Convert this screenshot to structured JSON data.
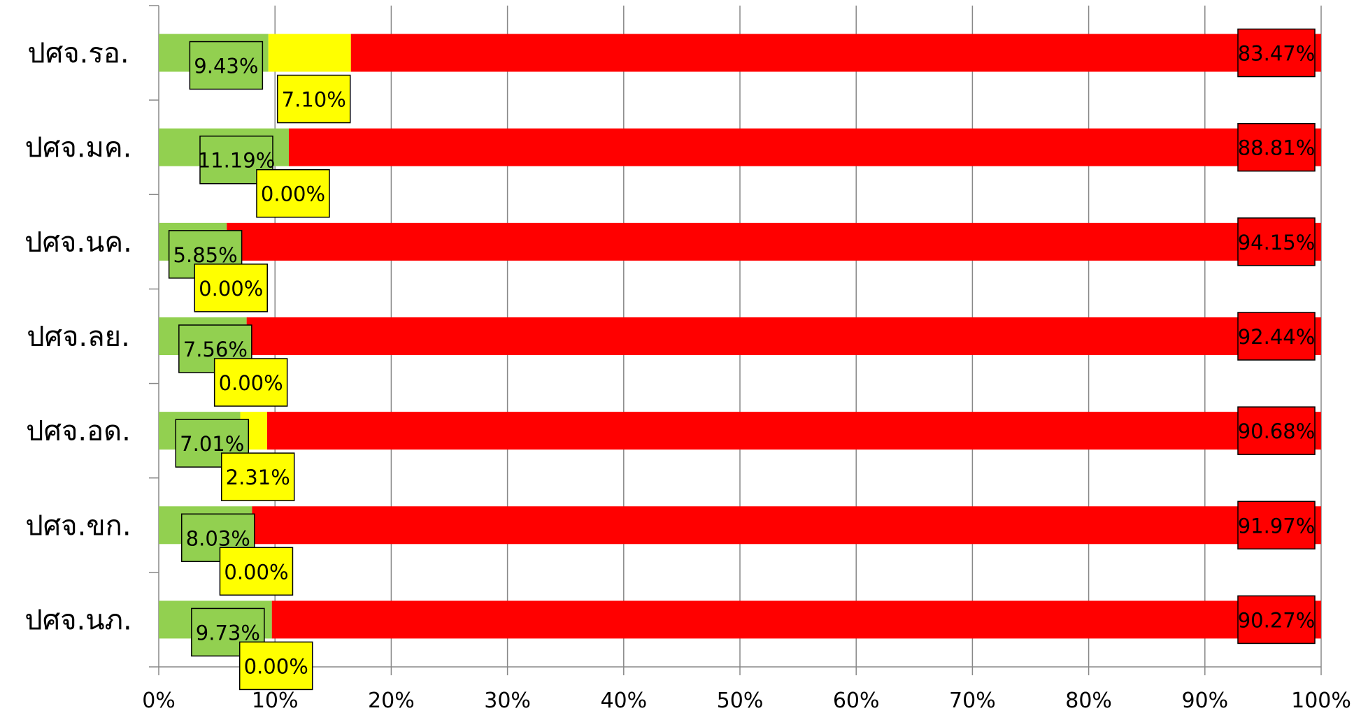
{
  "chart_data": {
    "type": "bar",
    "orientation": "horizontal",
    "stacked": true,
    "percent_stacked": true,
    "categories": [
      "ปศจ.รอ.",
      "ปศจ.มค.",
      "ปศจ.นค.",
      "ปศจ.ลย.",
      "ปศจ.อด.",
      "ปศจ.ขก.",
      "ปศจ.นภ."
    ],
    "series": [
      {
        "color": "#92D050",
        "values": [
          9.43,
          11.19,
          5.85,
          7.56,
          7.01,
          8.03,
          9.73
        ],
        "data_labels": [
          "9.43%",
          "11.19%",
          "5.85%",
          "7.56%",
          "7.01%",
          "8.03%",
          "9.73%"
        ]
      },
      {
        "color": "#FFFF00",
        "values": [
          7.1,
          0.0,
          0.0,
          0.0,
          2.31,
          0.0,
          0.0
        ],
        "data_labels": [
          "7.10%",
          "0.00%",
          "0.00%",
          "0.00%",
          "2.31%",
          "0.00%",
          "0.00%"
        ]
      },
      {
        "color": "#FF0000",
        "values": [
          83.47,
          88.81,
          94.15,
          92.44,
          90.68,
          91.97,
          90.27
        ],
        "data_labels": [
          "83.47%",
          "88.81%",
          "94.15%",
          "92.44%",
          "90.68%",
          "91.97%",
          "90.27%"
        ]
      }
    ],
    "x_ticks": [
      "0%",
      "10%",
      "20%",
      "30%",
      "40%",
      "50%",
      "60%",
      "70%",
      "80%",
      "90%",
      "100%"
    ],
    "xlim": [
      0,
      100
    ],
    "grid": true,
    "legend": "none",
    "title": "",
    "xlabel": "",
    "ylabel": ""
  }
}
